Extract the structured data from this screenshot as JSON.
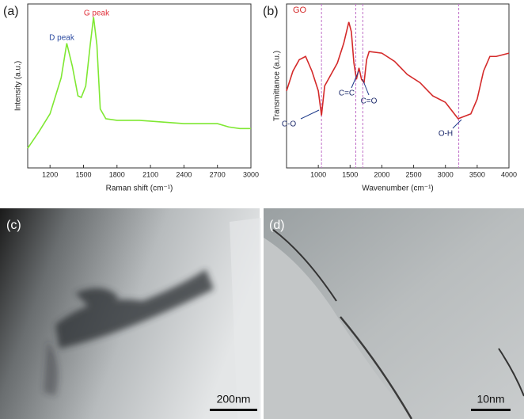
{
  "chart_data": [
    {
      "type": "line",
      "label": "(a)",
      "xlabel": "Raman shift (cm⁻¹)",
      "ylabel": "Intensity (a.u.)",
      "xlim": [
        1000,
        3000
      ],
      "xticks": [
        1200,
        1500,
        1800,
        2100,
        2400,
        2700,
        3000
      ],
      "ylim": [
        0,
        100
      ],
      "x": [
        1000,
        1100,
        1200,
        1300,
        1350,
        1400,
        1450,
        1480,
        1520,
        1560,
        1590,
        1620,
        1650,
        1700,
        1800,
        2000,
        2400,
        2700,
        2800,
        2900,
        3000
      ],
      "series": [
        {
          "color": "#7fe832",
          "values": [
            12,
            22,
            33,
            55,
            76,
            62,
            44,
            43,
            50,
            75,
            92,
            75,
            36,
            30,
            29,
            29,
            27,
            27,
            25,
            24,
            24
          ]
        }
      ],
      "annotations": [
        {
          "text": "D peak",
          "color": "#2b4aa0"
        },
        {
          "text": "G peak",
          "color": "#e0303a"
        }
      ]
    },
    {
      "type": "line",
      "label": "(b)",
      "xlabel": "Wavenumber (cm⁻¹)",
      "ylabel": "Transmittance (a.u.)",
      "xlim": [
        500,
        4000
      ],
      "xticks": [
        1000,
        1500,
        2000,
        2500,
        3000,
        3500,
        4000
      ],
      "ylim": [
        0,
        100
      ],
      "x": [
        500,
        600,
        700,
        800,
        900,
        1000,
        1050,
        1100,
        1200,
        1300,
        1400,
        1480,
        1520,
        1560,
        1600,
        1640,
        1680,
        1720,
        1760,
        1800,
        2000,
        2200,
        2400,
        2600,
        2800,
        3000,
        3200,
        3400,
        3500,
        3600,
        3700,
        3800,
        4000
      ],
      "series": [
        {
          "name": "GO",
          "color": "#d42a2a",
          "values": [
            47,
            59,
            66,
            68,
            59,
            47,
            32,
            50,
            57,
            64,
            76,
            89,
            83,
            64,
            54,
            61,
            54,
            52,
            66,
            71,
            70,
            65,
            57,
            52,
            44,
            40,
            30,
            33,
            42,
            59,
            68,
            68,
            70
          ]
        }
      ],
      "reference_lines": [
        1050,
        1590,
        1700,
        3210
      ],
      "annotations": [
        {
          "text": "C-O",
          "color": "#1d2a6b"
        },
        {
          "text": "C=C",
          "color": "#1d2a6b"
        },
        {
          "text": "C=O",
          "color": "#1d2a6b"
        },
        {
          "text": "O-H",
          "color": "#1d2a6b"
        }
      ]
    }
  ],
  "images": [
    {
      "label": "(c)",
      "scale_bar": "200nm"
    },
    {
      "label": "(d)",
      "scale_bar": "10nm"
    }
  ]
}
